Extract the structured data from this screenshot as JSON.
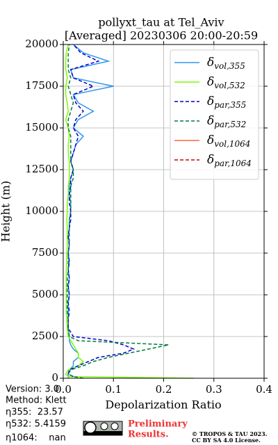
{
  "chart_data": {
    "type": "profile",
    "title": "pollyxt_tau at Tel_Aviv",
    "subtitle": "[Averaged] 20230306 20:00-20:59",
    "xlabel": "Depolarization Ratio",
    "ylabel": "Height (m)",
    "xlim": [
      0,
      0.4
    ],
    "xticks": [
      {
        "value": 0,
        "label": "0.0"
      },
      0.1,
      0.2,
      0.3,
      0.4
    ],
    "ylim": [
      0,
      20000
    ],
    "yticks": [
      0,
      2500,
      5000,
      7500,
      10000,
      12500,
      15000,
      17500,
      20000
    ],
    "grid": true,
    "legend": "upper right",
    "heights": [
      0,
      100,
      250,
      500,
      750,
      1000,
      1250,
      1500,
      1750,
      2000,
      2250,
      2500,
      3000,
      3500,
      4000,
      4500,
      5000,
      5500,
      6000,
      6500,
      7000,
      7500,
      8000,
      8500,
      9000,
      9500,
      10000,
      10500,
      11000,
      11500,
      12000,
      12500,
      13000,
      13500,
      14000,
      14500,
      15000,
      15500,
      16000,
      16500,
      17000,
      17500,
      18000,
      18500,
      19000,
      19500,
      20000
    ],
    "series": [
      {
        "name": "δvol,355",
        "color": "#2e96f0",
        "dash": false,
        "values": [
          0.01,
          0.01,
          0.01,
          0.012,
          0.02,
          0.02,
          0.03,
          0.03,
          0.02,
          0.015,
          0.012,
          0.012,
          0.01,
          0.01,
          0.01,
          0.01,
          0.012,
          0.01,
          0.012,
          0.01,
          0.012,
          0.01,
          0.012,
          0.01,
          0.012,
          0.012,
          0.015,
          0.015,
          0.012,
          0.012,
          0.015,
          0.02,
          0.015,
          0.02,
          0.025,
          0.04,
          0.02,
          0.03,
          0.06,
          0.03,
          0.02,
          0.1,
          0.02,
          0.015,
          0.09,
          0.04,
          0.02
        ]
      },
      {
        "name": "δvol,532",
        "color": "#7cfc00",
        "dash": false,
        "values": [
          0.26,
          0.01,
          0.005,
          0.01,
          0.03,
          0.04,
          0.03,
          0.03,
          0.025,
          0.02,
          0.015,
          0.01,
          0.008,
          0.007,
          0.006,
          0.006,
          0.006,
          0.006,
          0.006,
          0.006,
          0.007,
          0.007,
          0.008,
          0.008,
          0.008,
          0.007,
          0.008,
          0.008,
          0.01,
          0.01,
          0.012,
          0.012,
          0.012,
          0.01,
          0.01,
          0.012,
          0.01,
          0.005,
          0.01,
          0.008,
          0.005,
          0.005,
          0.008,
          0.005,
          0.005,
          0.006,
          0.01
        ]
      },
      {
        "name": "δpar,355",
        "color": "#0000cd",
        "dash": true,
        "values": [
          null,
          0.02,
          0.01,
          0.012,
          0.03,
          0.05,
          0.07,
          0.12,
          0.14,
          0.12,
          0.09,
          0.02,
          0.01,
          0.01,
          0.012,
          0.01,
          0.012,
          0.01,
          0.012,
          0.01,
          0.012,
          0.01,
          0.012,
          0.01,
          0.012,
          0.015,
          0.015,
          0.012,
          0.012,
          0.015,
          0.015,
          0.02,
          0.015,
          0.02,
          0.025,
          0.03,
          0.02,
          0.025,
          0.04,
          0.025,
          0.02,
          0.06,
          0.02,
          0.015,
          0.07,
          0.035,
          0.02
        ]
      },
      {
        "name": "δpar,532",
        "color": "#007a3d",
        "dash": true,
        "values": [
          0.04,
          0.02,
          0.01,
          0.015,
          0.04,
          0.06,
          0.09,
          0.13,
          0.17,
          0.21,
          0.03,
          0.012,
          0.01,
          0.01,
          0.008,
          0.008,
          0.008,
          0.008,
          0.008,
          0.01,
          0.01,
          0.01,
          0.012,
          0.012,
          0.012,
          0.012,
          0.015,
          0.015,
          0.015,
          0.015,
          0.02,
          0.02,
          0.015,
          0.015,
          0.015,
          0.015,
          0.01,
          0.01,
          0.015,
          0.02,
          0.015,
          0.01,
          0.015,
          0.01,
          0.01,
          0.01,
          0.012
        ]
      },
      {
        "name": "δvol,1064",
        "color": "#ff6347",
        "dash": false,
        "values": [
          null,
          null,
          null,
          null,
          null,
          null,
          null,
          null,
          null,
          null,
          null,
          null,
          null,
          null,
          null,
          null,
          null,
          null,
          null,
          null,
          null,
          null,
          null,
          null,
          null,
          null,
          null,
          null,
          null,
          null,
          null,
          null,
          null,
          null,
          null,
          null,
          null,
          null,
          null,
          null,
          null,
          null,
          null,
          null,
          null,
          null,
          null
        ]
      },
      {
        "name": "δpar,1064",
        "color": "#cc0000",
        "dash": true,
        "values": [
          null,
          null,
          null,
          null,
          null,
          null,
          null,
          null,
          null,
          null,
          null,
          null,
          null,
          null,
          null,
          null,
          null,
          null,
          null,
          null,
          null,
          null,
          null,
          null,
          null,
          null,
          null,
          null,
          null,
          null,
          null,
          null,
          null,
          null,
          null,
          null,
          null,
          null,
          null,
          null,
          null,
          null,
          null,
          null,
          null,
          null,
          null
        ]
      }
    ],
    "info": [
      "Version: 3.0",
      "Method: Klett",
      "η355:  23.57",
      "η532: 5.4159",
      "η1064:    nan"
    ],
    "preliminary": [
      "Preliminary",
      "Results."
    ],
    "copyright": [
      "© TROPOS & TAU 2023.",
      "CC BY SA 4.0 License."
    ]
  }
}
